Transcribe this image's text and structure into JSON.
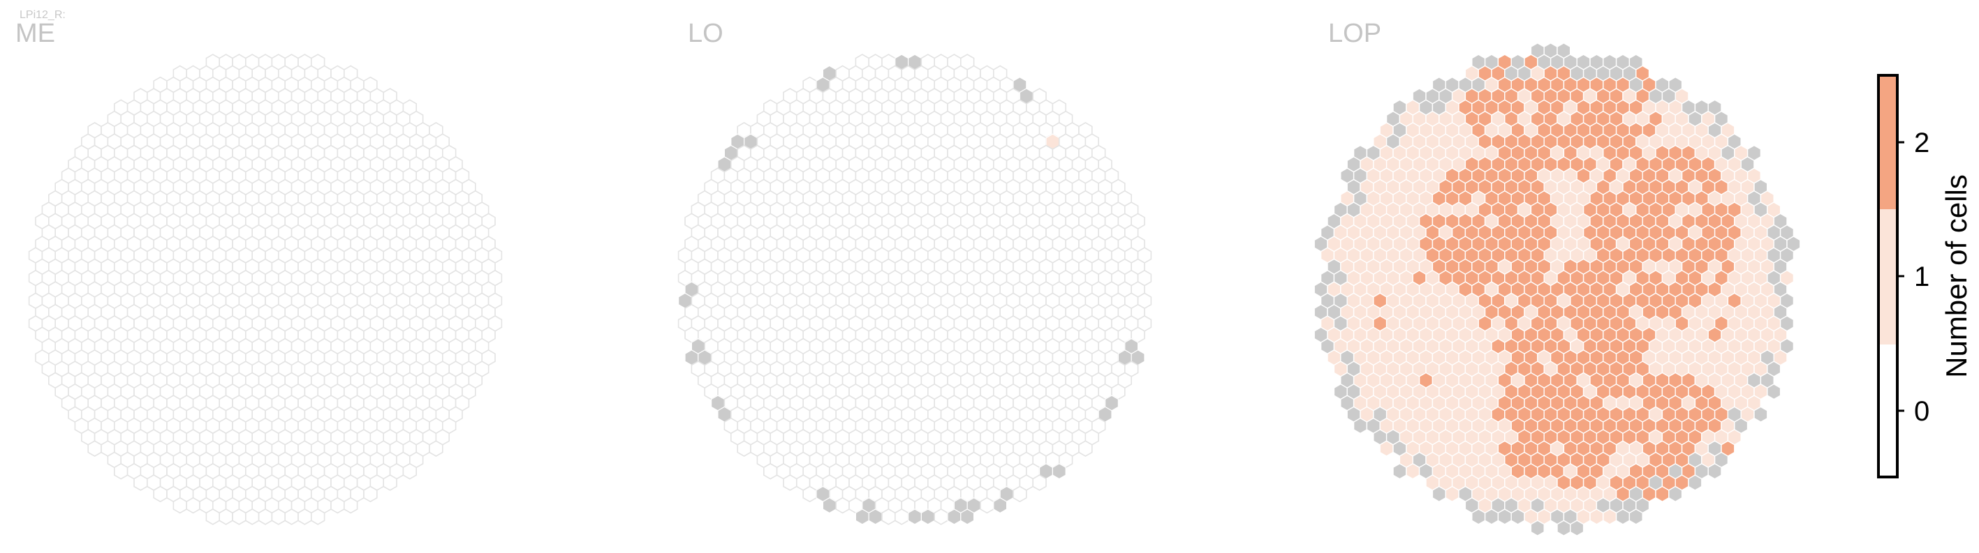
{
  "figure": {
    "small_label": "LPi12_R:",
    "colorbar_label": "Number of cells"
  },
  "colors": {
    "empty_outline": "#e3e3e3",
    "zero_fill": "#ffffff",
    "missing": "#cbcbcb",
    "level_1": "#fbe4d9",
    "level_2": "#f4a582",
    "hex_edge_filled": "#ffffff"
  },
  "chart_data": {
    "type": "heatmap",
    "subtype": "hexagonal column map",
    "panels": [
      {
        "name": "ME",
        "max_value": 0,
        "nonzero_cells": 0,
        "missing_columns_shown_grey": false
      },
      {
        "name": "LO",
        "max_value": 1,
        "nonzero_cells": 1,
        "missing_columns_shown_grey": true
      },
      {
        "name": "LOP",
        "max_value": 2,
        "dominant_value": 1,
        "missing_columns_shown_grey": true
      }
    ],
    "colorbar": {
      "label": "Number of cells",
      "ticks": [
        "0",
        "1",
        "2"
      ],
      "range": [
        -0.5,
        2.5
      ],
      "colors": [
        "#ffffff",
        "#fbe4d9",
        "#f4a582"
      ]
    }
  }
}
